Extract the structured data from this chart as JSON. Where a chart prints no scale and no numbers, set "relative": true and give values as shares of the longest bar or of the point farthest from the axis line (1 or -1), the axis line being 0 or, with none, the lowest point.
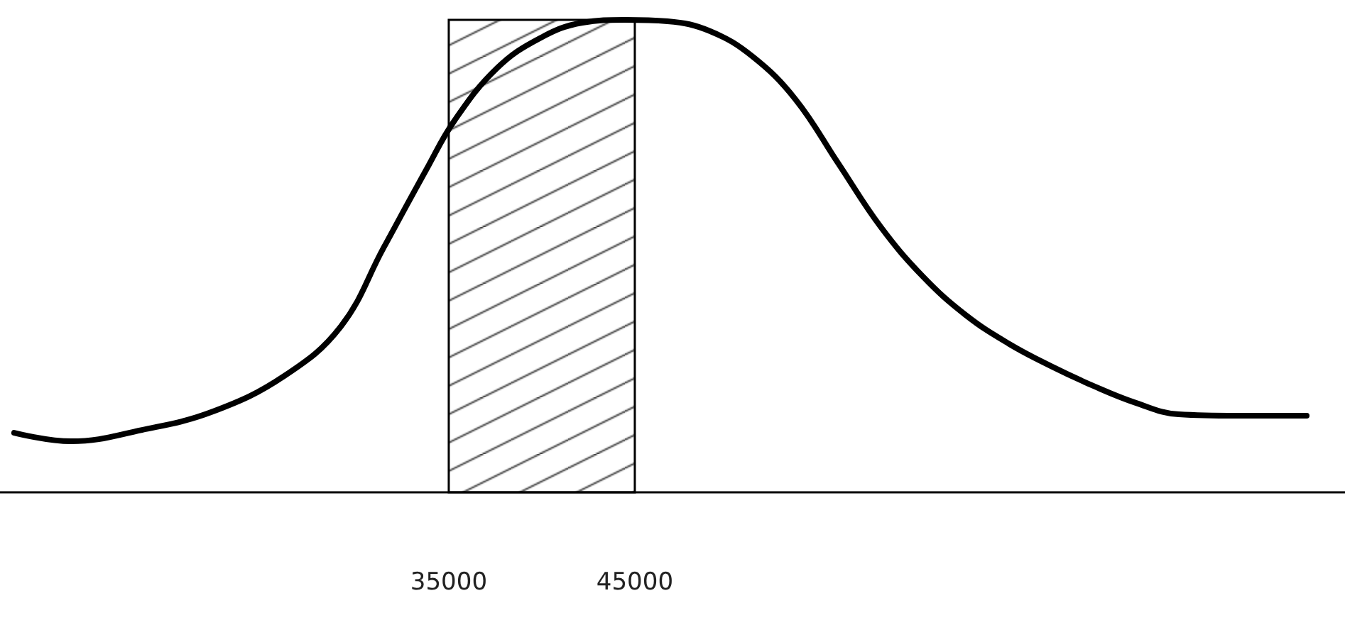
{
  "chart_data": {
    "type": "line",
    "relative": true,
    "x": [
      11640,
      14690,
      18510,
      22330,
      26150,
      29200,
      31490,
      33780,
      35310,
      37600,
      39890,
      42180,
      44470,
      46760,
      49050,
      51340,
      53630,
      55920,
      58210,
      60500,
      62790,
      65080,
      67370,
      69660,
      71950,
      74240,
      77290,
      81110
    ],
    "series": [
      {
        "color": "#000000",
        "values": [
          0.126,
          0.108,
          0.132,
          0.171,
          0.246,
          0.351,
          0.517,
          0.682,
          0.787,
          0.898,
          0.961,
          0.994,
          1,
          0.997,
          0.976,
          0.922,
          0.832,
          0.697,
          0.562,
          0.456,
          0.375,
          0.315,
          0.267,
          0.225,
          0.189,
          0.165,
          0.162,
          0.162
        ]
      }
    ],
    "xlim": [
      10880,
      83170
    ],
    "xticks": [
      35000,
      45000
    ],
    "bands": [
      {
        "axis": "x",
        "from": 35000,
        "to": 45000,
        "color": "#000000"
      }
    ],
    "tick_labels": "x",
    "grid": false,
    "marker": "none",
    "line_style": "solid"
  }
}
